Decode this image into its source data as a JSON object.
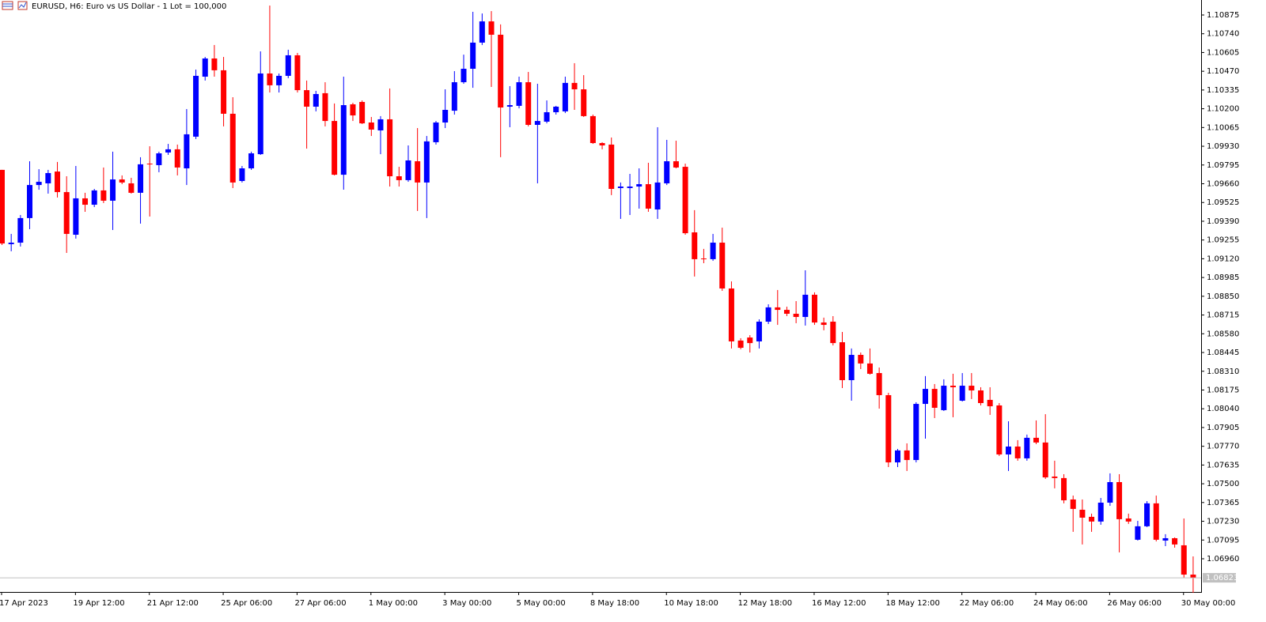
{
  "chart_data": {
    "type": "candlestick",
    "title": "EURUSD, H6:  Euro vs US Dollar - 1 Lot = 100,000",
    "up_color": "#0000ff",
    "down_color": "#ff0000",
    "categories": [
      "17 Apr 2023",
      null,
      null,
      null,
      null,
      null,
      null,
      null,
      "19 Apr 12:00",
      null,
      null,
      null,
      null,
      null,
      null,
      null,
      "21 Apr 12:00",
      null,
      null,
      null,
      null,
      null,
      null,
      null,
      "25 Apr 06:00",
      null,
      null,
      null,
      null,
      null,
      null,
      null,
      "27 Apr 06:00",
      null,
      null,
      null,
      null,
      null,
      null,
      null,
      "1 May 00:00",
      null,
      null,
      null,
      null,
      null,
      null,
      null,
      "3 May 00:00",
      null,
      null,
      null,
      null,
      null,
      null,
      null,
      "5 May 00:00",
      null,
      null,
      null,
      null,
      null,
      null,
      null,
      "8 May 18:00",
      null,
      null,
      null,
      null,
      null,
      null,
      null,
      "10 May 18:00",
      null,
      null,
      null,
      null,
      null,
      null,
      null,
      "12 May 18:00",
      null,
      null,
      null,
      null,
      null,
      null,
      null,
      "16 May 12:00",
      null,
      null,
      null,
      null,
      null,
      null,
      null,
      "18 May 12:00",
      null,
      null,
      null,
      null,
      null,
      null,
      null,
      "22 May 06:00",
      null,
      null,
      null,
      null,
      null,
      null,
      null,
      "24 May 06:00",
      null,
      null,
      null,
      null,
      null,
      null,
      null,
      "26 May 06:00",
      null,
      null,
      null,
      null,
      null,
      null,
      null,
      "30 May 00:00",
      null
    ],
    "open": [
      1.0976,
      1.09225,
      1.09236,
      1.09413,
      1.09651,
      1.09663,
      1.09748,
      1.096,
      1.09293,
      1.09555,
      1.09509,
      1.09612,
      1.09538,
      1.09691,
      1.09663,
      1.09595,
      1.09805,
      1.09794,
      1.09885,
      1.09908,
      1.09771,
      1.09999,
      1.10431,
      1.10562,
      1.10477,
      1.10164,
      1.0968,
      1.09771,
      1.09873,
      1.10454,
      1.10369,
      1.10437,
      1.10585,
      1.10334,
      1.10215,
      1.10312,
      1.10112,
      1.09725,
      1.10232,
      1.10249,
      1.10101,
      1.10044,
      1.10124,
      1.09714,
      1.09686,
      1.09822,
      1.09669,
      1.09959,
      1.10101,
      1.10186,
      1.10391,
      1.10488,
      1.10676,
      1.10829,
      1.10733,
      1.10215,
      1.10221,
      1.10391,
      1.10084,
      1.10107,
      1.10175,
      1.10181,
      1.10386,
      1.1034,
      1.10147,
      1.09953,
      1.09942,
      1.09629,
      1.09629,
      1.0964,
      1.09657,
      1.09475,
      1.09663,
      1.09822,
      1.09782,
      1.0931,
      1.09122,
      1.09117,
      1.09236,
      1.08906,
      1.08531,
      1.08553,
      1.08525,
      1.08667,
      1.0877,
      1.08752,
      1.08724,
      1.08701,
      1.08861,
      1.08661,
      1.08667,
      1.08519,
      1.08246,
      1.08428,
      1.08366,
      1.08297,
      1.08138,
      1.07654,
      1.0774,
      1.07671,
      1.08075,
      1.08183,
      1.0803,
      1.08206,
      1.08098,
      1.08206,
      1.08172,
      1.08104,
      1.08064,
      1.07711,
      1.07768,
      1.07683,
      1.07831,
      1.07797,
      1.07552,
      1.07541,
      1.07387,
      1.07313,
      1.07262,
      1.07228,
      1.07364,
      1.07512,
      1.0725,
      1.07097,
      1.07194,
      1.07359,
      1.07091,
      1.07108,
      1.07057,
      1.06846
    ],
    "high": [
      1.0976,
      1.09299,
      1.09435,
      1.09822,
      1.09765,
      1.0976,
      1.09817,
      1.09714,
      1.09788,
      1.09595,
      1.09623,
      1.09777,
      1.09891,
      1.0972,
      1.09703,
      1.09851,
      1.0993,
      1.09891,
      1.09947,
      1.09942,
      1.10198,
      1.10482,
      1.10573,
      1.10659,
      1.10573,
      1.10283,
      1.09788,
      1.09891,
      1.10613,
      1.10943,
      1.10454,
      1.10625,
      1.10602,
      1.10403,
      1.10329,
      1.10391,
      1.10238,
      1.10431,
      1.10243,
      1.1026,
      1.10141,
      1.10147,
      1.10346,
      1.09782,
      1.09936,
      1.10061,
      1.10004,
      1.10112,
      1.1034,
      1.10471,
      1.1059,
      1.10898,
      1.10886,
      1.10903,
      1.10807,
      1.10363,
      1.10431,
      1.10465,
      1.1038,
      1.1026,
      1.10221,
      1.10431,
      1.10528,
      1.10442,
      1.10158,
      1.09959,
      1.09993,
      1.09669,
      1.09731,
      1.09771,
      1.09811,
      1.10067,
      1.09976,
      1.0997,
      1.09805,
      1.0947,
      1.09191,
      1.09299,
      1.09344,
      1.08957,
      1.08548,
      1.0857,
      1.08684,
      1.08792,
      1.08895,
      1.08775,
      1.08815,
      1.09037,
      1.08878,
      1.08696,
      1.08707,
      1.08593,
      1.08474,
      1.08445,
      1.08474,
      1.08337,
      1.08155,
      1.07751,
      1.07791,
      1.08087,
      1.08275,
      1.08218,
      1.08252,
      1.08292,
      1.08297,
      1.08297,
      1.08195,
      1.08195,
      1.08081,
      1.0795,
      1.07814,
      1.07854,
      1.07956,
      1.08001,
      1.07666,
      1.07569,
      1.07415,
      1.07387,
      1.07285,
      1.07398,
      1.07575,
      1.07569,
      1.07285,
      1.07233,
      1.07375,
      1.07415,
      1.07137,
      1.07114,
      1.0725,
      1.06977
    ],
    "low": [
      1.09219,
      1.09174,
      1.09208,
      1.09333,
      1.09617,
      1.09589,
      1.09561,
      1.09162,
      1.09265,
      1.09458,
      1.09492,
      1.09521,
      1.09327,
      1.09657,
      1.09589,
      1.09373,
      1.09424,
      1.09743,
      1.09868,
      1.0972,
      1.09651,
      1.09982,
      1.10403,
      1.10431,
      1.10073,
      1.09629,
      1.09669,
      1.0976,
      1.09868,
      1.10317,
      1.10317,
      1.1042,
      1.10317,
      1.09913,
      1.10181,
      1.10073,
      1.0972,
      1.09617,
      1.10112,
      1.1009,
      1.10004,
      1.09873,
      1.0964,
      1.0964,
      1.09674,
      1.09464,
      1.09413,
      1.09942,
      1.10061,
      1.10158,
      1.1038,
      1.10351,
      1.10659,
      1.10357,
      1.09851,
      1.10067,
      1.10203,
      1.10073,
      1.09663,
      1.10095,
      1.10158,
      1.10169,
      1.10192,
      1.10141,
      1.09947,
      1.09908,
      1.09578,
      1.09407,
      1.09435,
      1.09481,
      1.09458,
      1.09407,
      1.09651,
      1.09771,
      1.09293,
      1.08992,
      1.09088,
      1.09105,
      1.08889,
      1.08474,
      1.08468,
      1.08445,
      1.08474,
      1.0865,
      1.08644,
      1.08707,
      1.08656,
      1.08639,
      1.08644,
      1.08605,
      1.08496,
      1.08189,
      1.08098,
      1.08326,
      1.08286,
      1.08041,
      1.0762,
      1.0762,
      1.07592,
      1.07654,
      1.07825,
      1.07973,
      1.08024,
      1.07979,
      1.08092,
      1.0811,
      1.08064,
      1.07996,
      1.077,
      1.07592,
      1.07666,
      1.07666,
      1.07785,
      1.07535,
      1.07467,
      1.07359,
      1.07154,
      1.07063,
      1.07154,
      1.07205,
      1.07341,
      1.07006,
      1.07211,
      1.07091,
      1.07188,
      1.07085,
      1.07051,
      1.0704,
      1.06824,
      1.06715
    ],
    "close": [
      1.0923,
      1.09236,
      1.09413,
      1.09651,
      1.09674,
      1.09737,
      1.096,
      1.09299,
      1.09555,
      1.09509,
      1.09612,
      1.09538,
      1.09691,
      1.09669,
      1.09595,
      1.098,
      1.098,
      1.09879,
      1.09908,
      1.09777,
      1.10016,
      1.10437,
      1.10562,
      1.10477,
      1.10164,
      1.09669,
      1.09771,
      1.09879,
      1.10454,
      1.10369,
      1.10437,
      1.10585,
      1.10334,
      1.10215,
      1.10306,
      1.10112,
      1.09725,
      1.10226,
      1.10152,
      1.10095,
      1.1005,
      1.10124,
      1.09714,
      1.09686,
      1.09828,
      1.09669,
      1.09965,
      1.10101,
      1.10192,
      1.10391,
      1.10488,
      1.10676,
      1.10829,
      1.10733,
      1.10209,
      1.10226,
      1.10391,
      1.10084,
      1.10112,
      1.10175,
      1.10215,
      1.10386,
      1.1034,
      1.10147,
      1.09953,
      1.09936,
      1.09623,
      1.0964,
      1.0964,
      1.09657,
      1.09481,
      1.09669,
      1.09822,
      1.09777,
      1.09304,
      1.09117,
      1.09117,
      1.09236,
      1.08906,
      1.08525,
      1.08479,
      1.08513,
      1.08667,
      1.0877,
      1.08752,
      1.08724,
      1.08701,
      1.08861,
      1.08661,
      1.08644,
      1.08513,
      1.08246,
      1.08428,
      1.08366,
      1.08292,
      1.08138,
      1.07654,
      1.0774,
      1.07671,
      1.08075,
      1.08183,
      1.08047,
      1.08206,
      1.08195,
      1.08206,
      1.08172,
      1.08081,
      1.08058,
      1.07711,
      1.07768,
      1.07683,
      1.07831,
      1.07797,
      1.07546,
      1.07541,
      1.07381,
      1.07319,
      1.07256,
      1.07228,
      1.07364,
      1.07512,
      1.07245,
      1.07228,
      1.07194,
      1.07359,
      1.07097,
      1.07108,
      1.07063,
      1.06846,
      1.06823
    ],
    "last_price": 1.06823,
    "ylim": [
      1.06721,
      1.10983
    ],
    "yticks": [
      1.10875,
      {
        "value": 1.1074,
        "label": "1.10740"
      },
      1.10605,
      {
        "value": 1.1047,
        "label": "1.10470"
      },
      1.10335,
      {
        "value": 1.102,
        "label": "1.10200"
      },
      1.10065,
      {
        "value": 1.0993,
        "label": "1.09930"
      },
      1.09795,
      {
        "value": 1.0966,
        "label": "1.09660"
      },
      1.09525,
      {
        "value": 1.0939,
        "label": "1.09390"
      },
      1.09255,
      {
        "value": 1.0912,
        "label": "1.09120"
      },
      1.08985,
      {
        "value": 1.0885,
        "label": "1.08850"
      },
      1.08715,
      {
        "value": 1.0858,
        "label": "1.08580"
      },
      1.08445,
      {
        "value": 1.0831,
        "label": "1.08310"
      },
      1.08175,
      {
        "value": 1.0804,
        "label": "1.08040"
      },
      1.07905,
      {
        "value": 1.0777,
        "label": "1.07770"
      },
      1.07635,
      {
        "value": 1.075,
        "label": "1.07500"
      },
      1.07365,
      {
        "value": 1.0723,
        "label": "1.07230"
      },
      1.07095,
      {
        "value": 1.0696,
        "label": "1.06960"
      }
    ],
    "grid": false
  }
}
